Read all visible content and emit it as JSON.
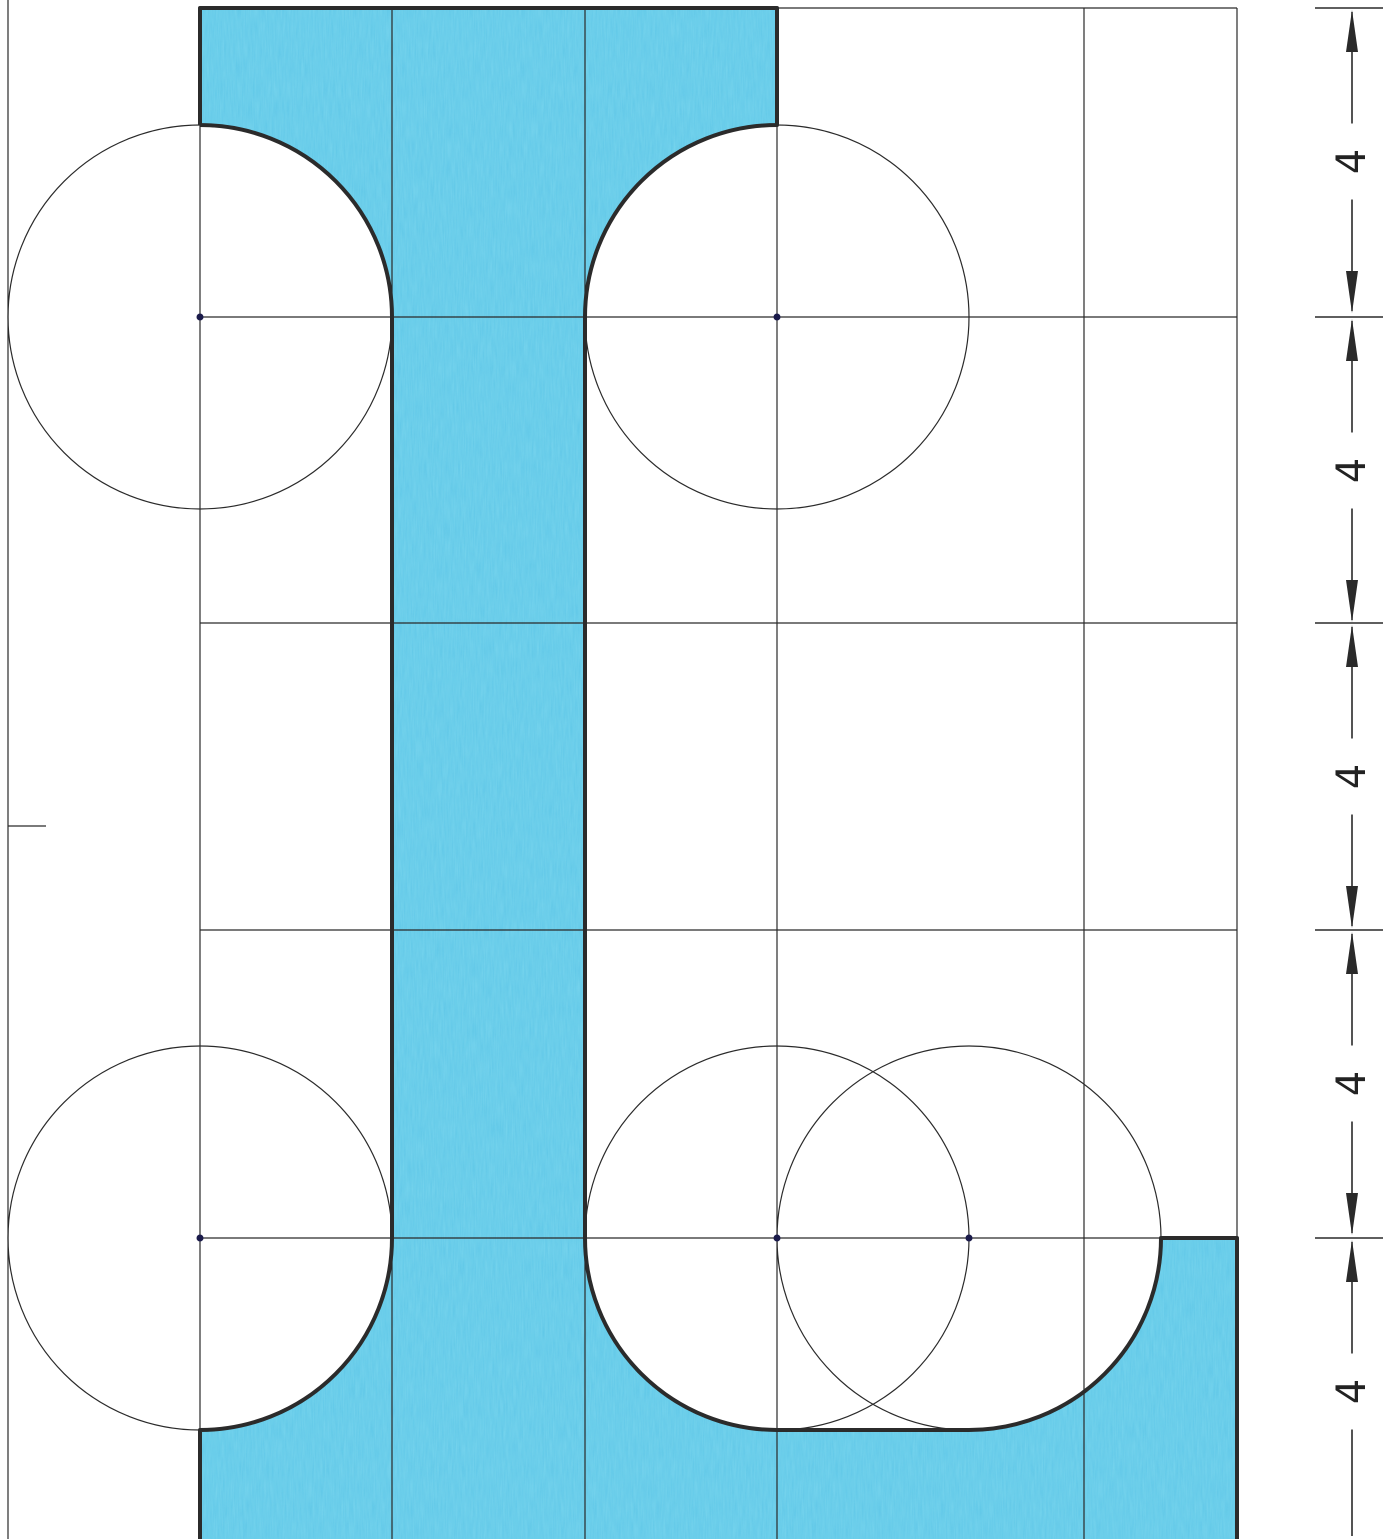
{
  "drawing": {
    "subject": "L",
    "fill_color": "#3db8e0",
    "outline_color": "#2b2b2b",
    "grid_color": "#2a2a2a",
    "dimensions": [
      {
        "label": "4"
      },
      {
        "label": "4"
      },
      {
        "label": "4"
      },
      {
        "label": "4"
      },
      {
        "label": "4"
      }
    ]
  }
}
